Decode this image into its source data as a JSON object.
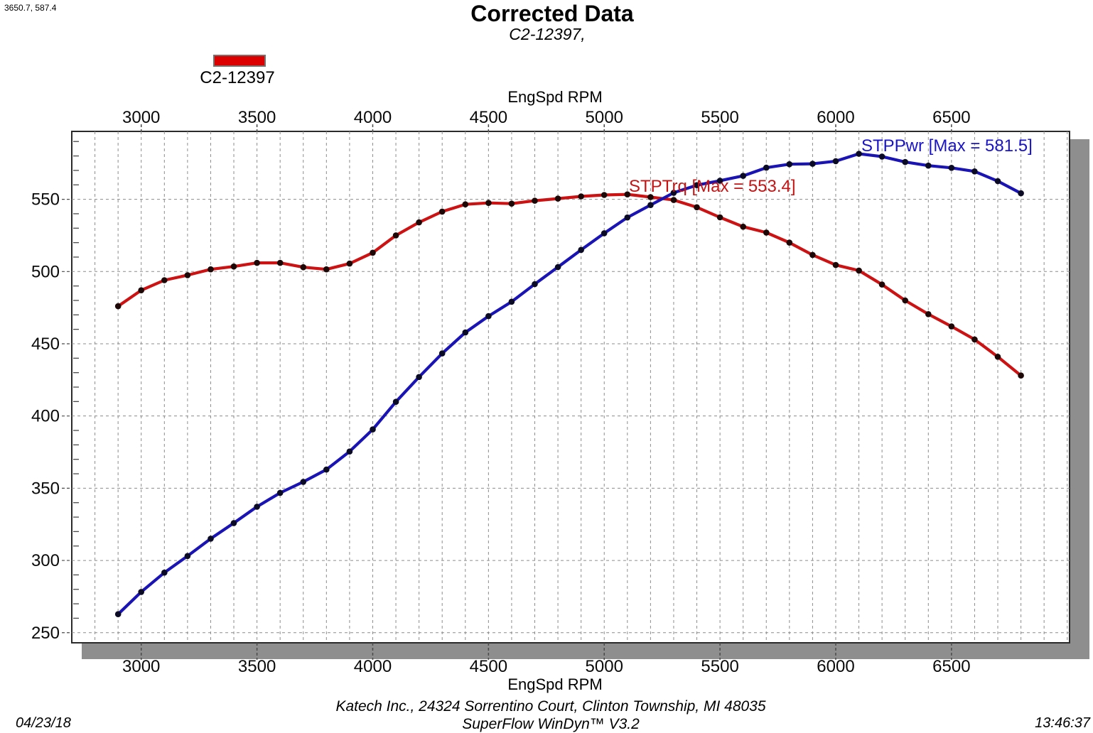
{
  "cursor_readout": "3650.7, 587.4",
  "header": {
    "title": "Corrected Data",
    "subtitle": "C2-12397,"
  },
  "legend": {
    "label": "C2-12397",
    "swatch_color": "#dd0000"
  },
  "axes": {
    "x_label_top": "EngSpd RPM",
    "x_label_bottom": "EngSpd RPM",
    "x_range": [
      2700,
      7010
    ],
    "x_major_ticks": [
      3000,
      3500,
      4000,
      4500,
      5000,
      5500,
      6000,
      6500
    ],
    "x_minor_step": 100,
    "y_range": [
      243,
      597
    ],
    "y_major_ticks": [
      250,
      300,
      350,
      400,
      450,
      500,
      550
    ],
    "y_minor_step": 10,
    "grid_style": "dashed"
  },
  "annotations": {
    "power": "STPPwr [Max = 581.5]",
    "torque": "STPTrq [Max = 553.4]"
  },
  "footer": {
    "address": "Katech Inc., 24324 Sorrentino Court, Clinton Township, MI 48035",
    "software": "SuperFlow WinDyn™ V3.2",
    "date": "04/23/18",
    "time": "13:46:37"
  },
  "colors": {
    "power_line": "#1a14b4",
    "torque_line": "#cc1212",
    "power_marker": "#0b0b26",
    "torque_marker": "#1e0707",
    "annotation_power": "#1a14c8",
    "annotation_torque": "#c41414",
    "grid": "#8c8c8c",
    "tick": "#4a4a4a",
    "border": "#2a2a2a",
    "shadow": "#8e8e8e"
  },
  "chart_data": {
    "type": "line",
    "title": "Corrected Data",
    "subtitle": "C2-12397,",
    "xlabel": "EngSpd RPM",
    "ylabel": "",
    "x_range": [
      2700,
      7010
    ],
    "y_range": [
      243,
      597
    ],
    "grid": true,
    "legend_position": "top-left",
    "x": [
      2900,
      3000,
      3100,
      3200,
      3300,
      3400,
      3500,
      3600,
      3700,
      3800,
      3900,
      4000,
      4100,
      4200,
      4300,
      4400,
      4500,
      4600,
      4700,
      4800,
      4900,
      5000,
      5100,
      5200,
      5300,
      5400,
      5500,
      5600,
      5700,
      5800,
      5900,
      6000,
      6100,
      6200,
      6300,
      6400,
      6500,
      6600,
      6700,
      6800
    ],
    "series": [
      {
        "name": "STPPwr",
        "max": 581.5,
        "values": [
          262.8,
          278.2,
          291.6,
          303.1,
          315.1,
          325.9,
          337.2,
          346.8,
          354.4,
          362.9,
          375.4,
          390.7,
          409.8,
          427.0,
          443.3,
          457.8,
          469.1,
          479.1,
          491.3,
          503.1,
          515.0,
          526.5,
          537.4,
          546.0,
          554.5,
          559.8,
          562.9,
          566.2,
          571.9,
          574.3,
          574.6,
          576.4,
          581.5,
          579.6,
          575.8,
          573.3,
          571.8,
          569.3,
          562.6,
          554.2
        ]
      },
      {
        "name": "STPTrq",
        "max": 553.4,
        "values": [
          476,
          487,
          494,
          497.5,
          501.5,
          503.5,
          506,
          506,
          503,
          501.5,
          505.5,
          513,
          525,
          534,
          541.5,
          546.5,
          547.5,
          547,
          549,
          550.5,
          552,
          553,
          553.4,
          551.5,
          549.5,
          544.5,
          537.5,
          531,
          527,
          520,
          511.5,
          504.5,
          500.7,
          491,
          480,
          470.5,
          462,
          453,
          441,
          428
        ]
      }
    ]
  }
}
